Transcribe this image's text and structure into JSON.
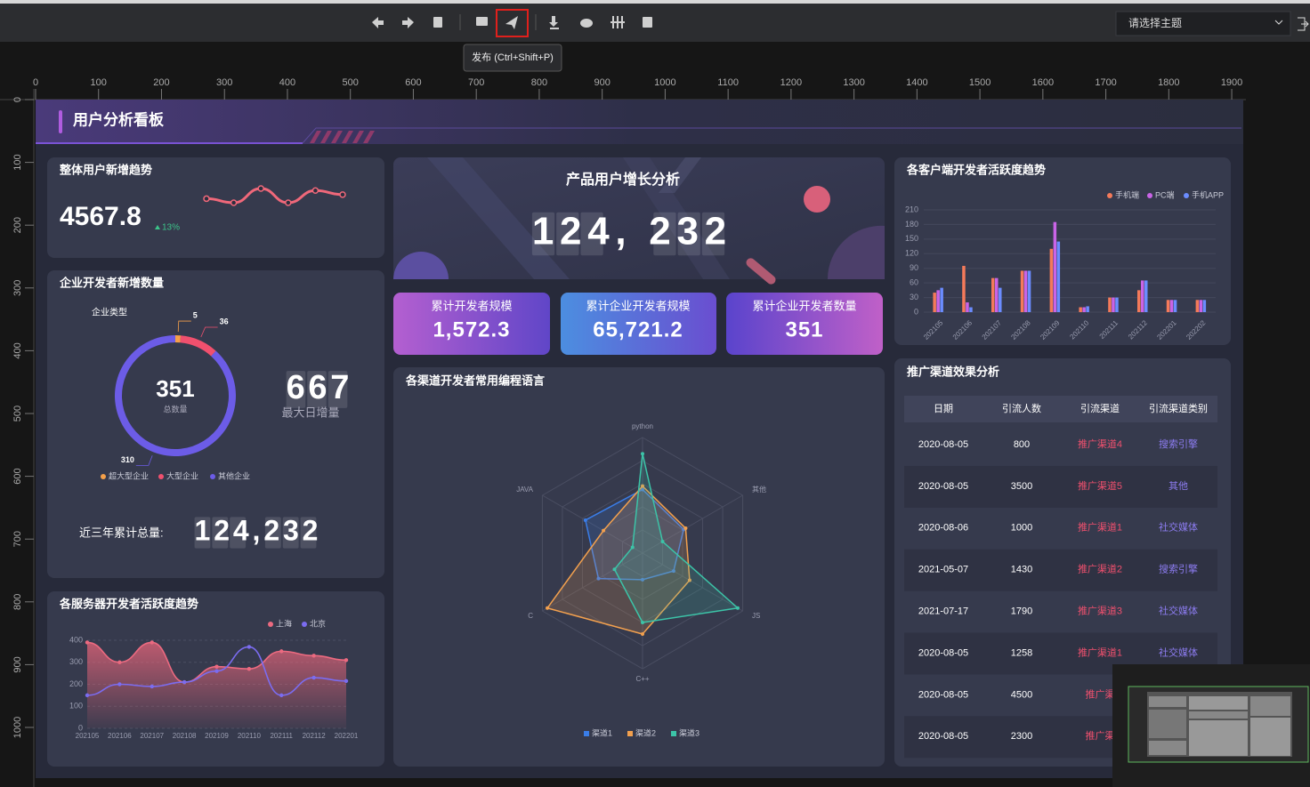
{
  "toolbar": {
    "tooltip": "发布 (Ctrl+Shift+P)",
    "theme_select": "请选择主题"
  },
  "ruler": {
    "horizontal": [
      0,
      100,
      200,
      300,
      400,
      500,
      600,
      700,
      800,
      900,
      1000,
      1100,
      1200,
      1300,
      1400,
      1500,
      1600,
      1700,
      1800,
      1900
    ],
    "vertical": [
      0,
      100,
      200,
      300,
      400,
      500,
      600,
      700,
      800,
      900,
      1000
    ]
  },
  "dashboard_title": "用户分析看板",
  "new_users": {
    "value": "4567.8",
    "change": "13%"
  },
  "enterprise": {
    "max_daily": "667",
    "max_daily_label": "最大日增量",
    "total_label": "近三年累计总量:",
    "total": "124,232"
  },
  "growth": {
    "title": "产品用户增长分析",
    "value": "124, 232"
  },
  "kpis": [
    {
      "label": "累计开发者规模",
      "value": "1,572.3"
    },
    {
      "label": "累计企业开发者规模",
      "value": "65,721.2"
    },
    {
      "label": "累计企业开发者数量",
      "value": "351"
    }
  ],
  "table": {
    "title": "推广渠道效果分析",
    "headers": [
      "日期",
      "引流人数",
      "引流渠道",
      "引流渠道类别"
    ],
    "rows": [
      [
        "2020-08-05",
        "800",
        "推广渠道4",
        "搜索引擎"
      ],
      [
        "2020-08-05",
        "3500",
        "推广渠道5",
        "其他"
      ],
      [
        "2020-08-06",
        "1000",
        "推广渠道1",
        "社交媒体"
      ],
      [
        "2021-05-07",
        "1430",
        "推广渠道2",
        "搜索引擎"
      ],
      [
        "2021-07-17",
        "1790",
        "推广渠道3",
        "社交媒体"
      ],
      [
        "2020-08-05",
        "1258",
        "推广渠道1",
        "社交媒体"
      ],
      [
        "2020-08-05",
        "4500",
        "推广渠"
      ],
      [
        "2020-08-05",
        "2300",
        "推广渠"
      ]
    ]
  },
  "chart_data": [
    {
      "type": "sparkline",
      "title": "整体用户新增趋势",
      "values": [
        48,
        44,
        58,
        44,
        56,
        52
      ],
      "color": "#f0687a"
    },
    {
      "type": "pie",
      "title": "企业开发者新增数量",
      "legend_title": "企业类型",
      "categories": [
        "超大型企业",
        "大型企业",
        "其他企业"
      ],
      "values": [
        5,
        36,
        310
      ],
      "colors": [
        "#f5a04a",
        "#f0506e",
        "#6c5ce7"
      ],
      "center_value": "351",
      "center_label": "总数量"
    },
    {
      "type": "line",
      "title": "各服务器开发者活跃度趋势",
      "categories": [
        "202105",
        "202106",
        "202107",
        "202108",
        "202109",
        "202110",
        "202111",
        "202112",
        "202201"
      ],
      "series": [
        {
          "name": "上海",
          "color": "#ec6a80",
          "fill": true,
          "values": [
            390,
            300,
            390,
            210,
            280,
            270,
            350,
            330,
            310
          ]
        },
        {
          "name": "北京",
          "color": "#7b6cf0",
          "fill": false,
          "values": [
            150,
            200,
            190,
            210,
            260,
            370,
            150,
            230,
            215
          ]
        }
      ],
      "ylim": [
        0,
        400
      ],
      "yticks": [
        0,
        100,
        200,
        300,
        400
      ],
      "grid": true
    },
    {
      "type": "radar",
      "title": "各渠道开发者常用编程语言",
      "indicators": [
        "python",
        "其他",
        "JS",
        "C++",
        "C",
        "JAVA"
      ],
      "rlim": [
        0,
        100
      ],
      "series": [
        {
          "name": "渠道1",
          "color": "#3a7de8",
          "values": [
            55,
            41,
            31,
            23,
            44,
            57
          ]
        },
        {
          "name": "渠道2",
          "color": "#f2a04e",
          "values": [
            58,
            43,
            47,
            70,
            95,
            39
          ]
        },
        {
          "name": "渠道3",
          "color": "#3cc4a8",
          "values": [
            86,
            20,
            95,
            60,
            28,
            10
          ]
        }
      ]
    },
    {
      "type": "bar",
      "title": "各客户端开发者活跃度趋势",
      "categories": [
        "202105",
        "202106",
        "202107",
        "202108",
        "202109",
        "202110",
        "202111",
        "202112",
        "202201",
        "202202"
      ],
      "series": [
        {
          "name": "手机端",
          "color": "#f47a5a",
          "values": [
            40,
            95,
            70,
            85,
            130,
            10,
            30,
            45,
            25,
            25
          ]
        },
        {
          "name": "PC端",
          "color": "#c964e6",
          "values": [
            45,
            20,
            70,
            85,
            185,
            10,
            30,
            65,
            25,
            25
          ]
        },
        {
          "name": "手机APP",
          "color": "#6b8cff",
          "values": [
            50,
            10,
            50,
            85,
            145,
            12,
            30,
            65,
            25,
            25
          ]
        }
      ],
      "ylim": [
        0,
        210
      ],
      "yticks": [
        0,
        30,
        60,
        90,
        120,
        150,
        180,
        210
      ],
      "grid": true
    }
  ]
}
